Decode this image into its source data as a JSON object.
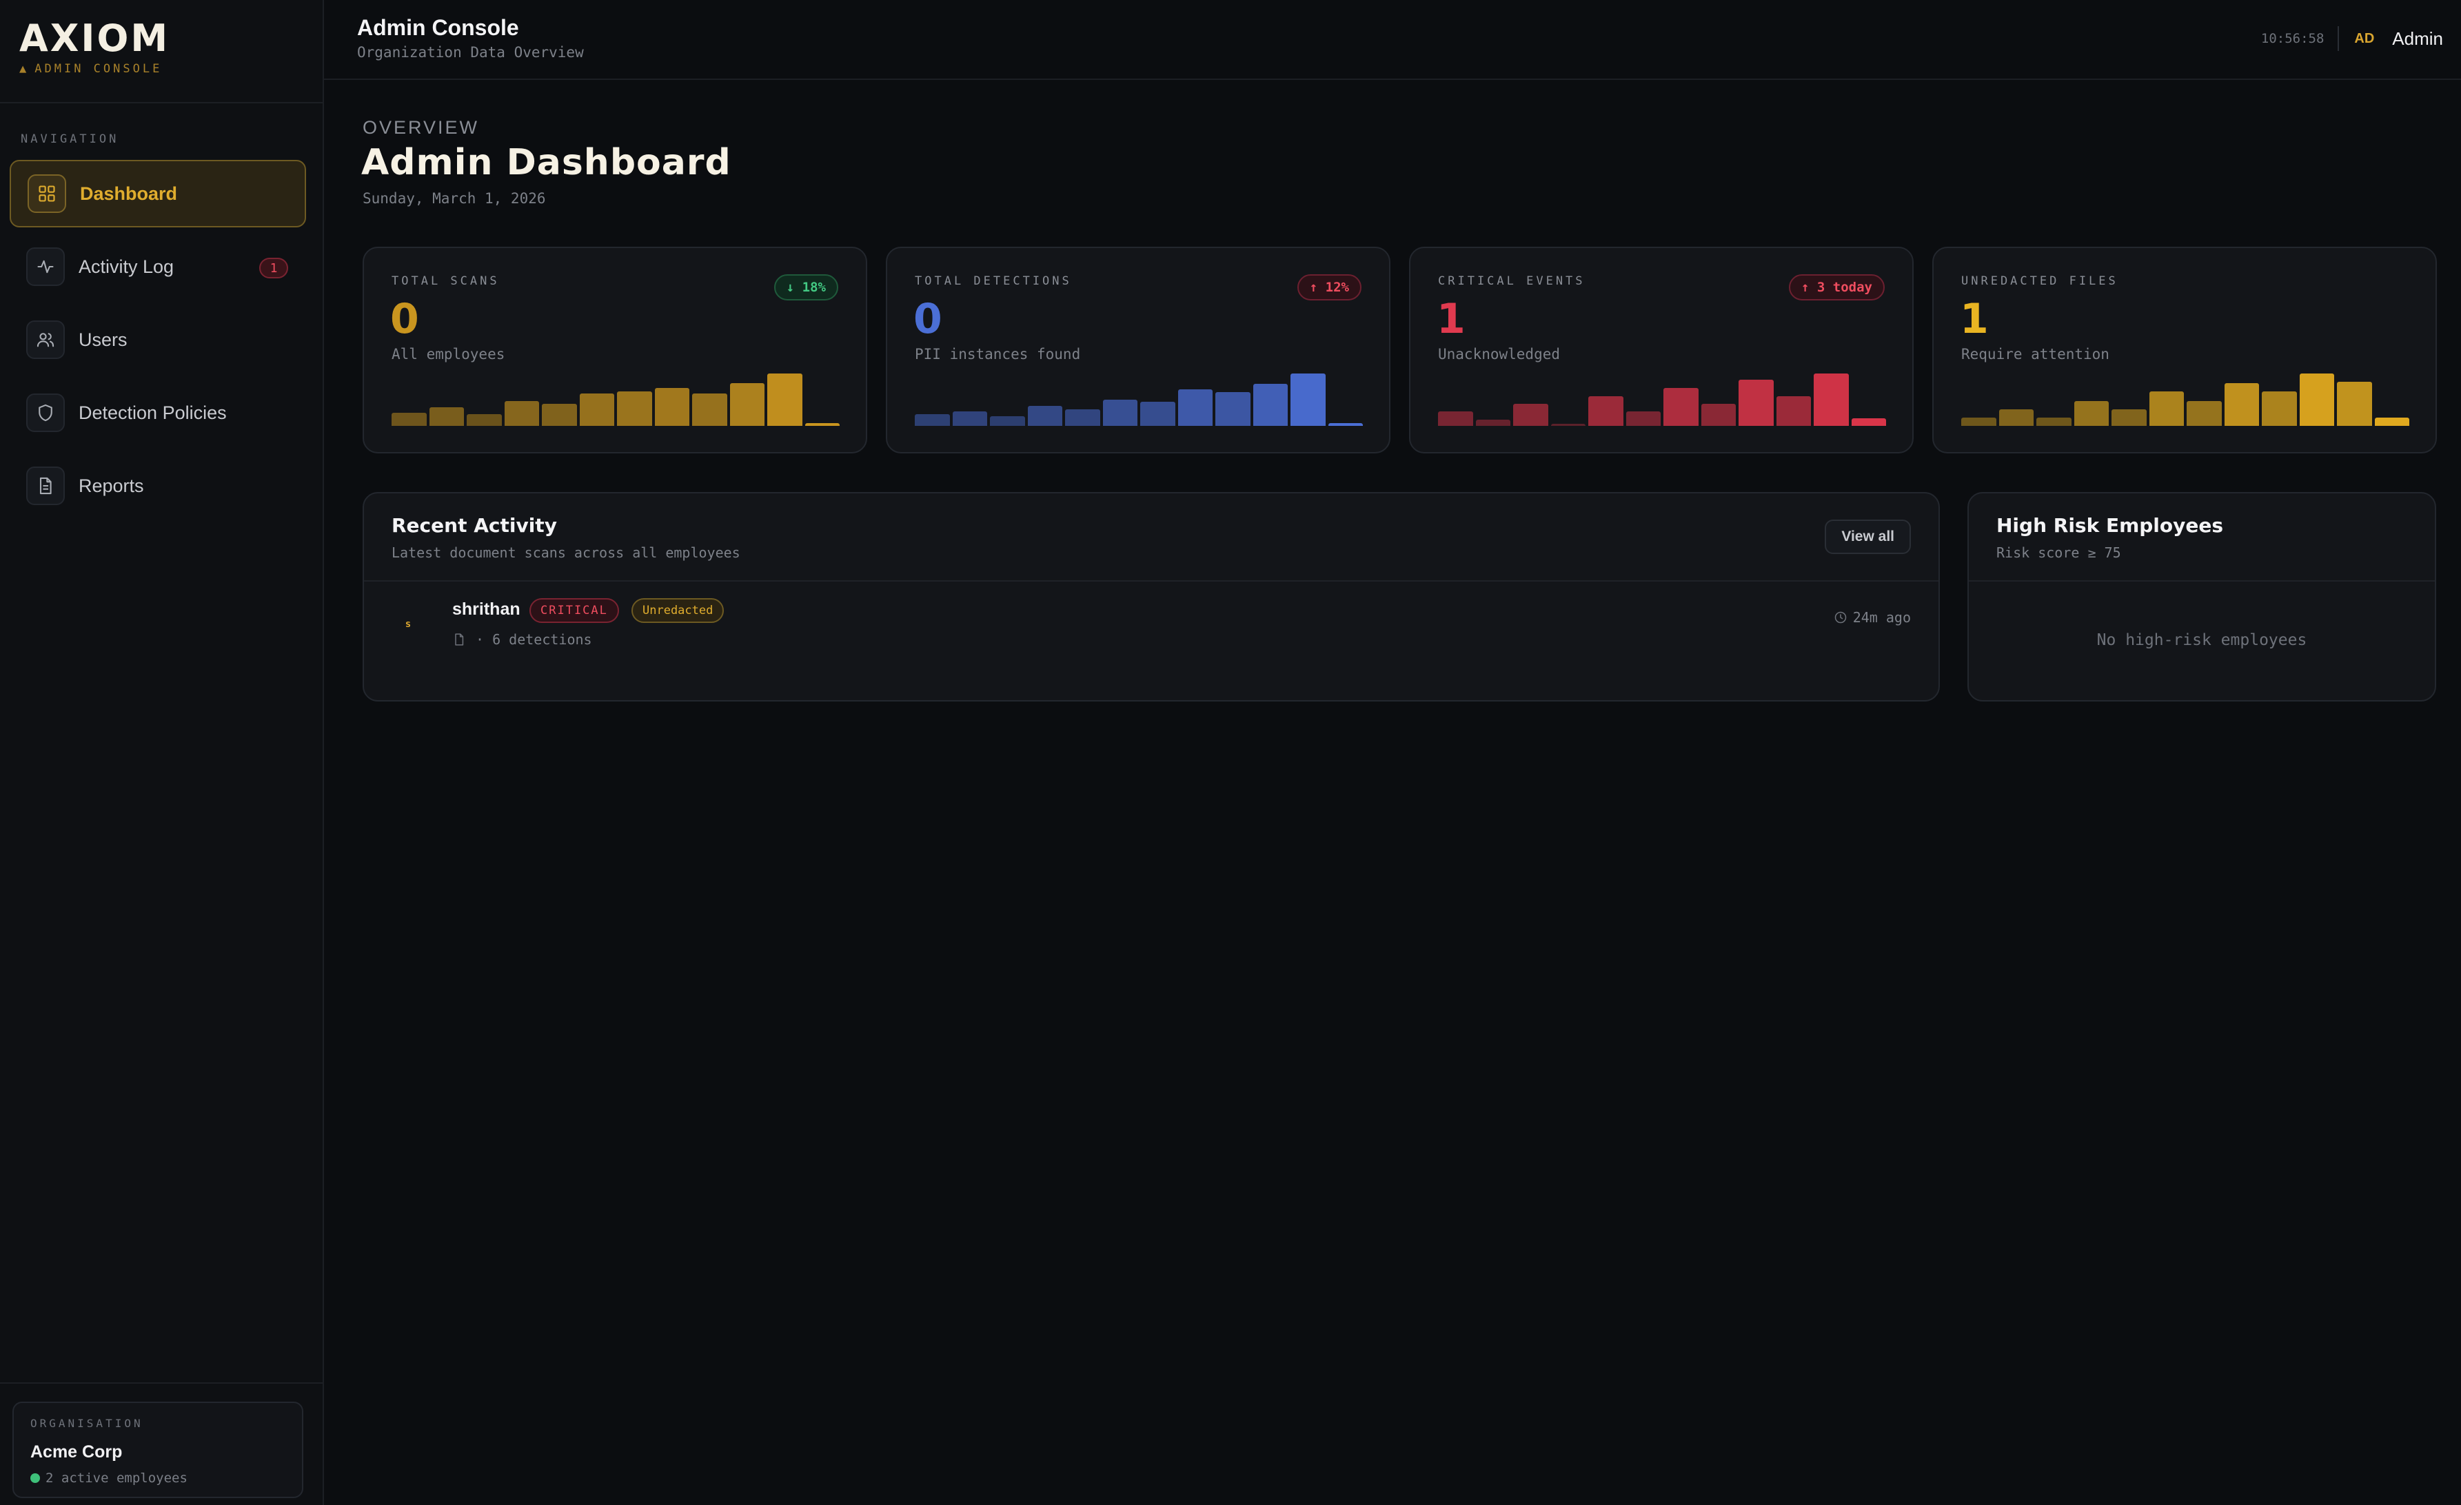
{
  "brand": {
    "logo": "AXIOM",
    "subtitle": "ADMIN CONSOLE",
    "subtitle_glyph": "▲"
  },
  "sidebar": {
    "nav_label": "NAVIGATION",
    "items": [
      {
        "label": "Dashboard",
        "icon": "grid-icon",
        "active": true
      },
      {
        "label": "Activity Log",
        "icon": "activity-icon",
        "badge": "1"
      },
      {
        "label": "Users",
        "icon": "users-icon"
      },
      {
        "label": "Detection Policies",
        "icon": "shield-icon"
      },
      {
        "label": "Reports",
        "icon": "file-text-icon"
      }
    ],
    "org": {
      "label": "ORGANISATION",
      "name": "Acme Corp",
      "status": "2 active employees"
    }
  },
  "topbar": {
    "title": "Admin Console",
    "subtitle": "Organization Data Overview",
    "clock": "10:56:58",
    "avatar_initials": "AD",
    "user_name": "Admin"
  },
  "page": {
    "overline": "OVERVIEW",
    "title": "Admin Dashboard",
    "date": "Sunday, March 1, 2026"
  },
  "stats": [
    {
      "label": "TOTAL SCANS",
      "value": "0",
      "sub": "All employees",
      "chip": "↓ 18%",
      "chip_tone": "green",
      "color": "#c9951f",
      "trend": [
        0.25,
        0.35,
        0.22,
        0.48,
        0.42,
        0.62,
        0.66,
        0.72,
        0.62,
        0.82,
        1.0,
        0.05
      ]
    },
    {
      "label": "TOTAL DETECTIONS",
      "value": "0",
      "sub": "PII instances found",
      "chip": "↑ 12%",
      "chip_tone": "red",
      "color": "#4b6fd6",
      "trend": [
        0.22,
        0.28,
        0.18,
        0.38,
        0.32,
        0.5,
        0.46,
        0.7,
        0.64,
        0.8,
        1.0,
        0.05
      ]
    },
    {
      "label": "CRITICAL EVENTS",
      "value": "1",
      "sub": "Unacknowledged",
      "chip": "↑ 3 today",
      "chip_tone": "red",
      "color": "#d93549",
      "trend": [
        0.27,
        0.12,
        0.42,
        0.04,
        0.56,
        0.27,
        0.72,
        0.42,
        0.88,
        0.56,
        1.0,
        0.14
      ]
    },
    {
      "label": "UNREDACTED FILES",
      "value": "1",
      "sub": "Require attention",
      "chip": "",
      "chip_tone": "",
      "color": "#e0a91f",
      "trend": [
        0.16,
        0.32,
        0.16,
        0.48,
        0.32,
        0.66,
        0.48,
        0.82,
        0.66,
        1.0,
        0.84,
        0.16
      ]
    }
  ],
  "recent_activity": {
    "title": "Recent Activity",
    "subtitle": "Latest document scans across all employees",
    "view_all": "View all",
    "rows": [
      {
        "avatar": "s",
        "name": "shrithan",
        "severity": "CRITICAL",
        "status": "Unredacted",
        "meta": "· 6 detections",
        "time": "24m ago"
      }
    ]
  },
  "high_risk": {
    "title": "High Risk Employees",
    "subtitle": "Risk score ≥ 75",
    "empty": "No high-risk employees"
  }
}
